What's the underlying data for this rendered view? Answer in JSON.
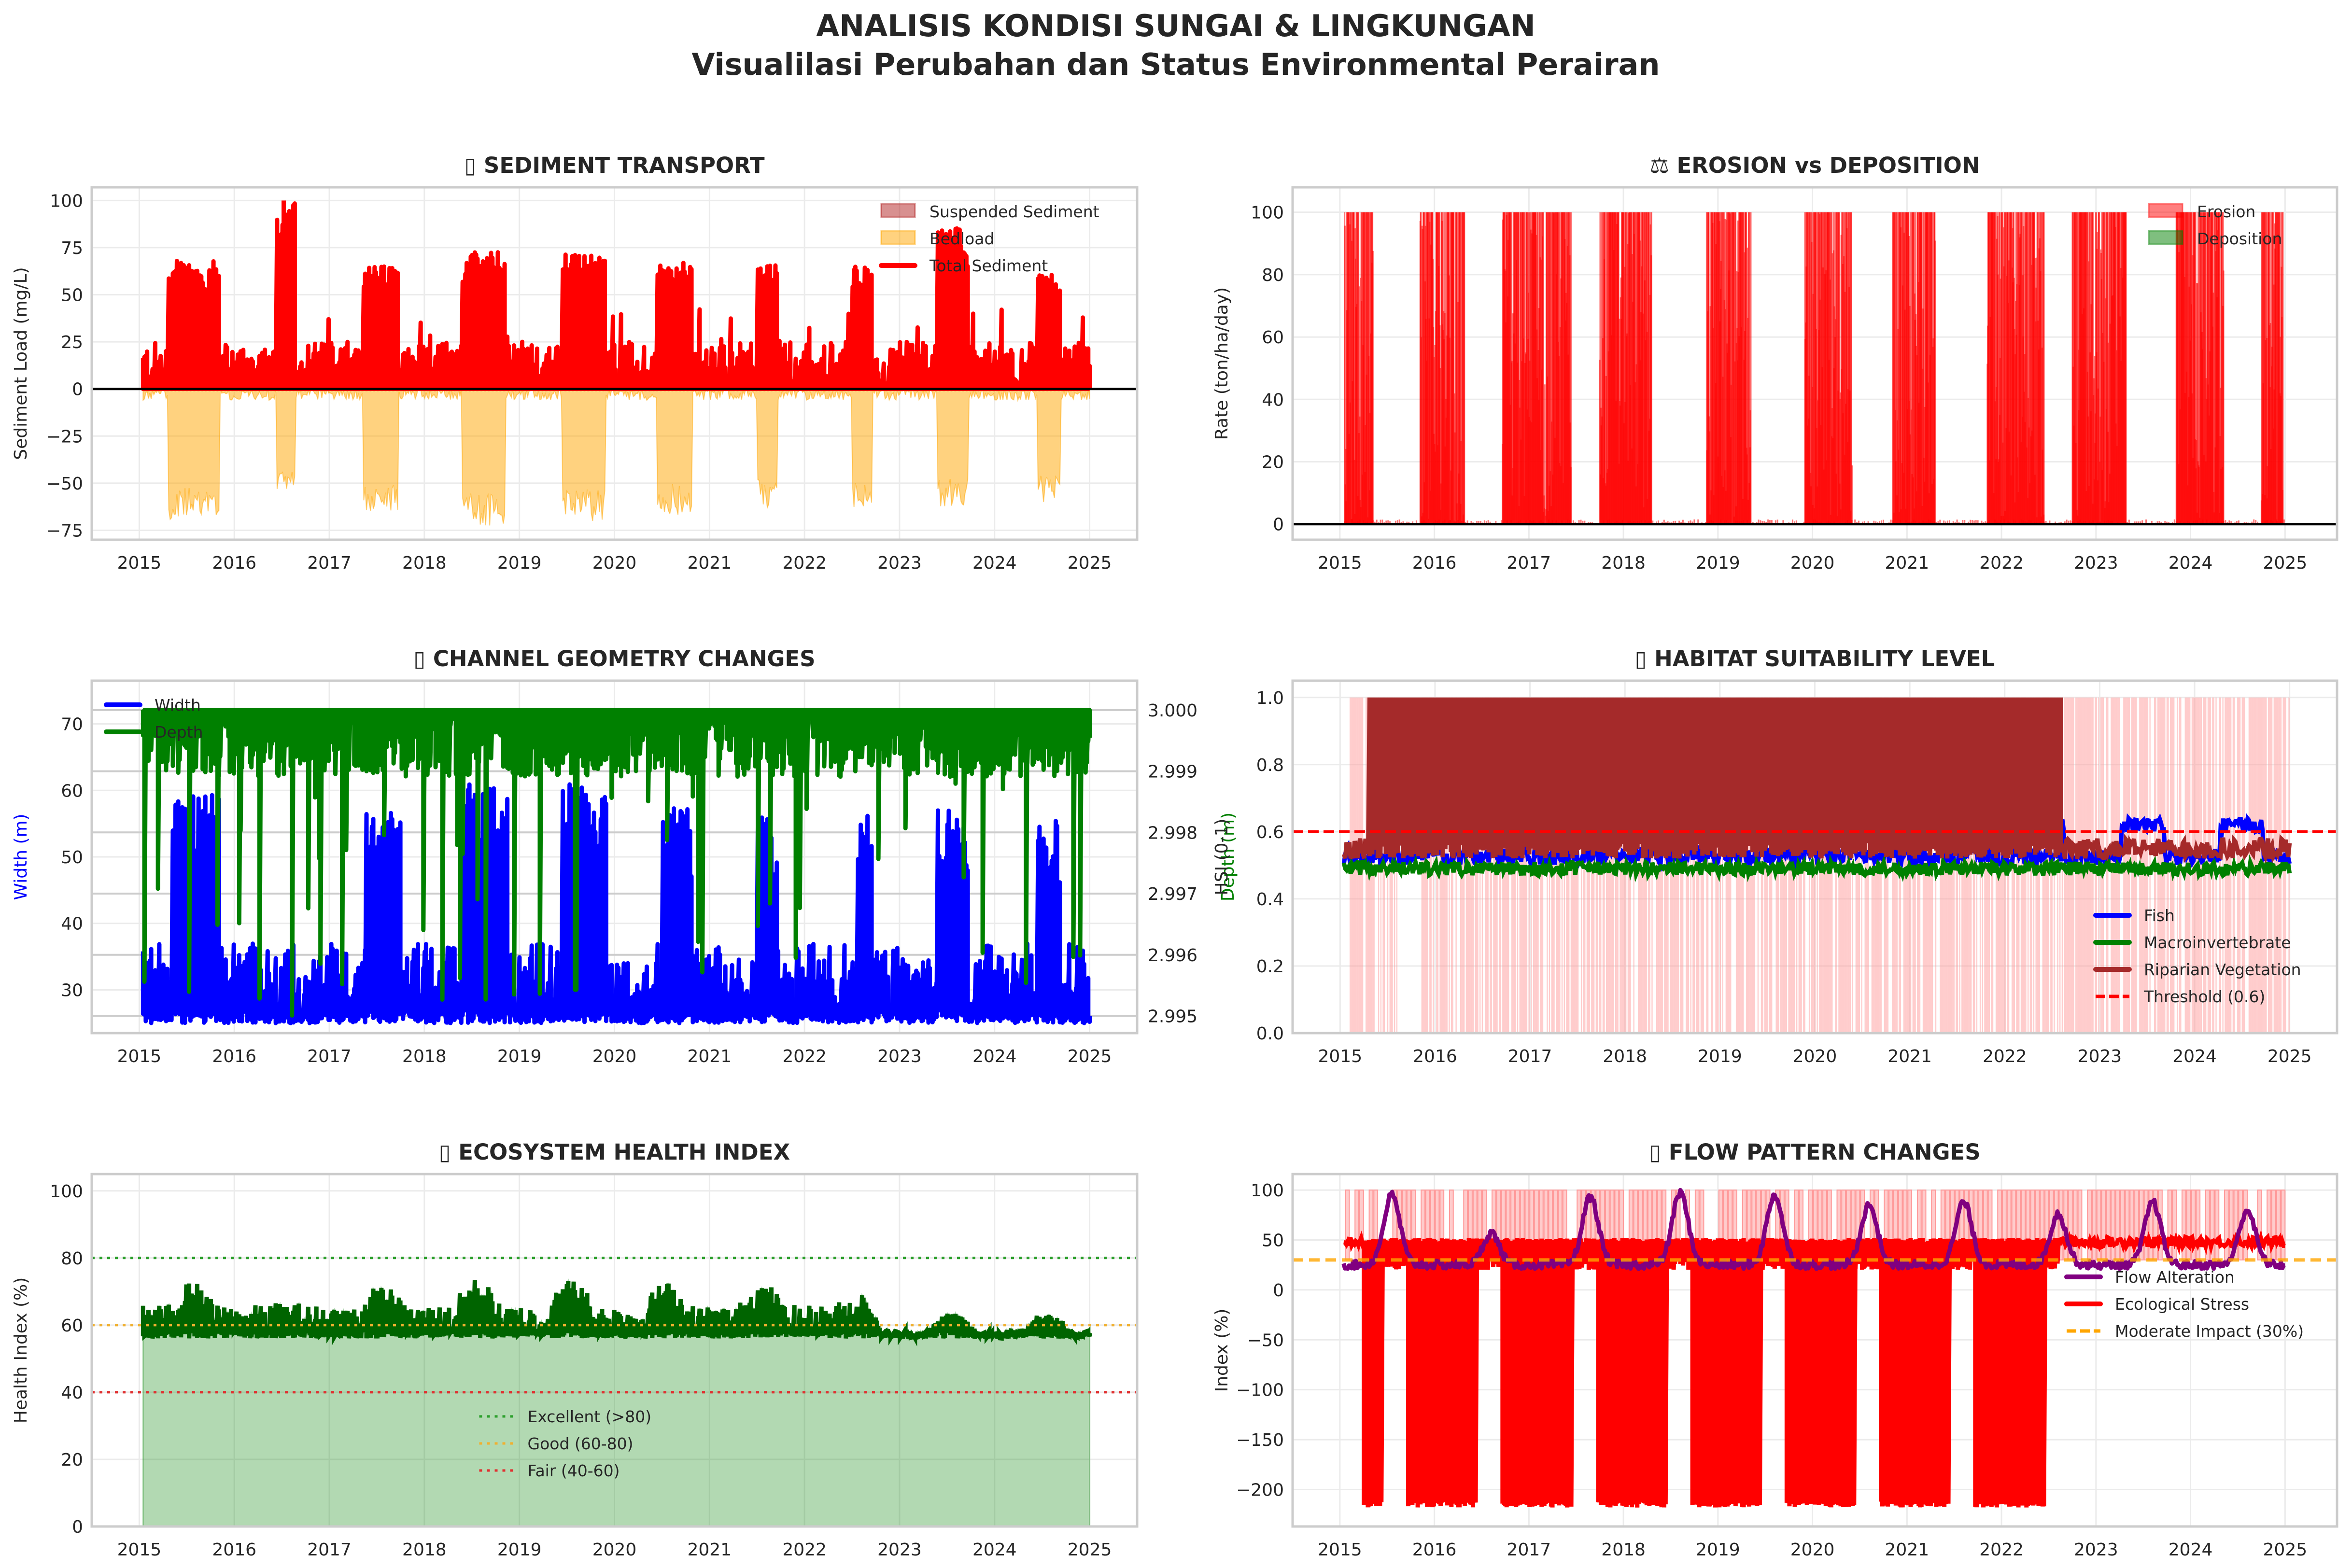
{
  "figure": {
    "title_line1": "ANALISIS KONDISI SUNGAI & LINGKUNGAN",
    "title_line2": "Visualilasi Perubahan dan Status Environmental Perairan"
  },
  "chart_data": [
    {
      "id": "sediment",
      "type": "line",
      "title": "▯ SEDIMENT TRANSPORT",
      "title_icon": "missing-glyph-box",
      "xlabel": "",
      "ylabel": "Sediment Load (mg/L)",
      "xlim": [
        2014.5,
        2025.5
      ],
      "ylim": [
        -80,
        107
      ],
      "xticks": [
        "2015",
        "2016",
        "2017",
        "2018",
        "2019",
        "2020",
        "2021",
        "2022",
        "2023",
        "2024",
        "2025"
      ],
      "yticks": [
        -75,
        -50,
        -25,
        0,
        25,
        50,
        75,
        100
      ],
      "ytick_labels": [
        "−75",
        "−50",
        "−25",
        "0",
        "25",
        "50",
        "75",
        "100"
      ],
      "grid": true,
      "zero_line": true,
      "legend": {
        "position": "top-right",
        "entries": [
          {
            "label": "Suspended Sediment",
            "kind": "patch",
            "color": "#b22222"
          },
          {
            "label": "Bedload",
            "kind": "patch",
            "color": "#ffa500"
          },
          {
            "label": "Total Sediment",
            "kind": "line",
            "color": "#ff0000"
          }
        ]
      },
      "series": [
        {
          "name": "Total Sediment",
          "color": "#ff0000",
          "baseline_range": [
            0,
            25
          ],
          "wet_season_peaks": [
            {
              "start": 2015.3,
              "end": 2015.85,
              "peak": 68
            },
            {
              "start": 2016.45,
              "end": 2016.65,
              "peak": 100
            },
            {
              "start": 2017.35,
              "end": 2017.72,
              "peak": 66
            },
            {
              "start": 2018.4,
              "end": 2018.85,
              "peak": 73
            },
            {
              "start": 2019.45,
              "end": 2019.9,
              "peak": 72
            },
            {
              "start": 2020.45,
              "end": 2020.82,
              "peak": 67
            },
            {
              "start": 2021.5,
              "end": 2021.72,
              "peak": 66
            },
            {
              "start": 2022.5,
              "end": 2022.72,
              "peak": 65
            },
            {
              "start": 2023.4,
              "end": 2023.72,
              "peak": 86
            },
            {
              "start": 2024.45,
              "end": 2024.7,
              "peak": 62
            }
          ]
        },
        {
          "name": "Suspended Sediment",
          "color": "#b22222",
          "range": [
            0,
            19
          ]
        },
        {
          "name": "Bedload",
          "color": "#ffa500",
          "sign": "negative",
          "min": -73,
          "troughs": [
            {
              "start": 2015.3,
              "end": 2015.85,
              "depth": -70
            },
            {
              "start": 2016.45,
              "end": 2016.65,
              "depth": -58
            },
            {
              "start": 2017.35,
              "end": 2017.72,
              "depth": -65
            },
            {
              "start": 2018.4,
              "end": 2018.85,
              "depth": -73
            },
            {
              "start": 2019.45,
              "end": 2019.9,
              "depth": -71
            },
            {
              "start": 2020.45,
              "end": 2020.82,
              "depth": -67
            },
            {
              "start": 2021.5,
              "end": 2021.72,
              "depth": -64
            },
            {
              "start": 2022.5,
              "end": 2022.72,
              "depth": -65
            },
            {
              "start": 2023.4,
              "end": 2023.72,
              "depth": -63
            },
            {
              "start": 2024.45,
              "end": 2024.7,
              "depth": -61
            }
          ]
        }
      ]
    },
    {
      "id": "erosion",
      "type": "bar",
      "title": "⚖ EROSION vs DEPOSITION",
      "title_icon": "balance-scale-icon",
      "xlabel": "",
      "ylabel": "Rate (ton/ha/day)",
      "xlim": [
        2014.5,
        2025.55
      ],
      "ylim": [
        -5,
        108
      ],
      "xticks": [
        "2015",
        "2016",
        "2017",
        "2018",
        "2019",
        "2020",
        "2021",
        "2022",
        "2023",
        "2024",
        "2025"
      ],
      "yticks": [
        0,
        20,
        40,
        60,
        80,
        100
      ],
      "ytick_labels": [
        "0",
        "20",
        "40",
        "60",
        "80",
        "100"
      ],
      "grid": true,
      "zero_line": true,
      "legend": {
        "position": "top-right",
        "entries": [
          {
            "label": "Erosion",
            "kind": "patch",
            "color": "#ff0000"
          },
          {
            "label": "Deposition",
            "kind": "patch",
            "color": "#008000"
          }
        ]
      },
      "series": [
        {
          "name": "Erosion",
          "color": "#ff0000",
          "max": 100,
          "active_periods": [
            [
              2015.05,
              2015.35
            ],
            [
              2015.85,
              2016.32
            ],
            [
              2016.72,
              2017.45
            ],
            [
              2017.75,
              2018.3
            ],
            [
              2018.88,
              2019.35
            ],
            [
              2019.92,
              2020.42
            ],
            [
              2020.85,
              2021.3
            ],
            [
              2021.85,
              2022.45
            ],
            [
              2022.75,
              2023.32
            ],
            [
              2023.85,
              2024.35
            ],
            [
              2024.75,
              2024.98
            ]
          ]
        },
        {
          "name": "Deposition",
          "color": "#008000",
          "max": 0
        }
      ]
    },
    {
      "id": "geometry",
      "type": "line",
      "title": "▯ CHANNEL GEOMETRY CHANGES",
      "title_icon": "missing-glyph-box",
      "xlabel": "",
      "ylabel": "Width (m)",
      "ylabel_color": "#0000ff",
      "ylabel_right": "Depth (m)",
      "ylabel_right_color": "#008000",
      "xlim": [
        2014.5,
        2025.5
      ],
      "ylim": [
        23.5,
        76.5
      ],
      "ylim_right": [
        2.99472,
        3.00048
      ],
      "xticks": [
        "2015",
        "2016",
        "2017",
        "2018",
        "2019",
        "2020",
        "2021",
        "2022",
        "2023",
        "2024",
        "2025"
      ],
      "yticks": [
        30,
        40,
        50,
        60,
        70
      ],
      "ytick_labels": [
        "30",
        "40",
        "50",
        "60",
        "70"
      ],
      "yticks_right": [
        2.995,
        2.996,
        2.997,
        2.998,
        2.999,
        3.0
      ],
      "ytick_labels_right": [
        "2.995",
        "2.996",
        "2.997",
        "2.998",
        "2.999",
        "3.000"
      ],
      "grid": true,
      "legend": {
        "position": "top-left",
        "entries": [
          {
            "label": "Width",
            "kind": "line",
            "color": "#0000ff"
          },
          {
            "label": "Depth",
            "kind": "line",
            "color": "#008000"
          }
        ]
      },
      "series": [
        {
          "name": "Width",
          "color": "#0000ff",
          "baseline_range": [
            25,
            37
          ],
          "wet_season_peaks": [
            {
              "start": 2015.35,
              "end": 2015.85,
              "peak": 60
            },
            {
              "start": 2017.38,
              "end": 2017.75,
              "peak": 58
            },
            {
              "start": 2018.4,
              "end": 2018.88,
              "peak": 61
            },
            {
              "start": 2019.45,
              "end": 2019.92,
              "peak": 61
            },
            {
              "start": 2020.5,
              "end": 2020.82,
              "peak": 58
            },
            {
              "start": 2021.5,
              "end": 2021.72,
              "peak": 57
            },
            {
              "start": 2022.55,
              "end": 2022.72,
              "peak": 57
            },
            {
              "start": 2023.4,
              "end": 2023.72,
              "peak": 57
            },
            {
              "start": 2024.45,
              "end": 2024.7,
              "peak": 56
            }
          ]
        },
        {
          "name": "Depth",
          "color": "#008000",
          "typical_range": [
            2.9988,
            3.0
          ],
          "min": 2.99495
        }
      ]
    },
    {
      "id": "habitat",
      "type": "line",
      "title": "▯ HABITAT SUITABILITY LEVEL",
      "title_icon": "missing-glyph-box",
      "xlabel": "",
      "ylabel": "HSI (0-1)",
      "xlim": [
        2014.5,
        2025.5
      ],
      "ylim": [
        0,
        1.05
      ],
      "xticks": [
        "2015",
        "2016",
        "2017",
        "2018",
        "2019",
        "2020",
        "2021",
        "2022",
        "2023",
        "2024",
        "2025"
      ],
      "yticks": [
        0.0,
        0.2,
        0.4,
        0.6,
        0.8,
        1.0
      ],
      "ytick_labels": [
        "0.0",
        "0.2",
        "0.4",
        "0.6",
        "0.8",
        "1.0"
      ],
      "grid": true,
      "threshold": {
        "value": 0.6,
        "color": "#ff0000",
        "label": "Threshold (0.6)"
      },
      "legend": {
        "position": "lower-right",
        "entries": [
          {
            "label": "Fish",
            "kind": "line",
            "color": "#0000ff"
          },
          {
            "label": "Macroinvertebrate",
            "kind": "line",
            "color": "#008000"
          },
          {
            "label": "Riparian Vegetation",
            "kind": "line",
            "color": "#a52a2a"
          },
          {
            "label": "Threshold (0.6)",
            "kind": "dashed",
            "color": "#ff0000"
          }
        ]
      },
      "series": [
        {
          "name": "Fish",
          "color": "#0000ff",
          "range": [
            0.5,
            0.64
          ]
        },
        {
          "name": "Macroinvertebrate",
          "color": "#008000",
          "range": [
            0.46,
            0.52
          ]
        },
        {
          "name": "Riparian Vegetation",
          "color": "#a52a2a",
          "oscillating_until": 2022.6,
          "range": [
            0.52,
            1.0
          ],
          "after_range": [
            0.52,
            0.58
          ]
        }
      ],
      "shaded_below_threshold": {
        "color": "#ff9999",
        "range": [
          0,
          1
        ]
      }
    },
    {
      "id": "health",
      "type": "area",
      "title": "▯ ECOSYSTEM HEALTH INDEX",
      "title_icon": "missing-glyph-box",
      "xlabel": "",
      "ylabel": "Health Index (%)",
      "xlim": [
        2014.5,
        2025.5
      ],
      "ylim": [
        0,
        105
      ],
      "xticks": [
        "2015",
        "2016",
        "2017",
        "2018",
        "2019",
        "2020",
        "2021",
        "2022",
        "2023",
        "2024",
        "2025"
      ],
      "yticks": [
        0,
        20,
        40,
        60,
        80,
        100
      ],
      "ytick_labels": [
        "0",
        "20",
        "40",
        "60",
        "80",
        "100"
      ],
      "grid": true,
      "reference_lines": [
        {
          "value": 80,
          "color": "#2ca02c",
          "label": "Excellent (>80)"
        },
        {
          "value": 60,
          "color": "#f0b030",
          "label": "Good (60-80)"
        },
        {
          "value": 40,
          "color": "#e03030",
          "label": "Fair (40-60)"
        }
      ],
      "legend": {
        "position": "lower-center",
        "entries": [
          {
            "label": "Excellent (>80)",
            "kind": "dotted",
            "color": "#2ca02c"
          },
          {
            "label": "Good (60-80)",
            "kind": "dotted",
            "color": "#f0b030"
          },
          {
            "label": "Fair (40-60)",
            "kind": "dotted",
            "color": "#e03030"
          }
        ]
      },
      "series": [
        {
          "name": "Health Index",
          "color": "#006400",
          "fill": "#b2d8b2",
          "baseline_range": [
            56,
            66
          ],
          "until": 2022.6,
          "after_range": [
            56,
            63
          ],
          "annual_peaks": [
            73,
            67,
            72,
            74,
            74,
            73,
            73,
            69,
            63,
            63
          ]
        }
      ]
    },
    {
      "id": "flow",
      "type": "line",
      "title": "▯ FLOW PATTERN CHANGES",
      "title_icon": "missing-glyph-box",
      "xlabel": "",
      "ylabel": "Index (%)",
      "xlim": [
        2014.5,
        2025.55
      ],
      "ylim": [
        -237,
        116
      ],
      "xticks": [
        "2015",
        "2016",
        "2017",
        "2018",
        "2019",
        "2020",
        "2021",
        "2022",
        "2023",
        "2024",
        "2025"
      ],
      "yticks": [
        -200,
        -150,
        -100,
        -50,
        0,
        50,
        100
      ],
      "ytick_labels": [
        "−200",
        "−150",
        "−100",
        "−50",
        "0",
        "50",
        "100"
      ],
      "grid": true,
      "threshold": {
        "value": 30,
        "color": "#ffa500",
        "label": "Moderate Impact (30%)"
      },
      "legend": {
        "position": "center-right",
        "entries": [
          {
            "label": "Flow Alteration",
            "kind": "line",
            "color": "#800080"
          },
          {
            "label": "Ecological Stress",
            "kind": "line",
            "color": "#ff0000"
          },
          {
            "label": "Moderate Impact (30%)",
            "kind": "dashed",
            "color": "#ffa500"
          }
        ]
      },
      "series": [
        {
          "name": "Flow Alteration",
          "color": "#800080",
          "annual_peaks": [
            {
              "x": 2015.55,
              "y": 95
            },
            {
              "x": 2016.6,
              "y": 57
            },
            {
              "x": 2017.65,
              "y": 93
            },
            {
              "x": 2018.6,
              "y": 97
            },
            {
              "x": 2019.6,
              "y": 95
            },
            {
              "x": 2020.6,
              "y": 85
            },
            {
              "x": 2021.6,
              "y": 88
            },
            {
              "x": 2022.6,
              "y": 76
            },
            {
              "x": 2023.6,
              "y": 88
            },
            {
              "x": 2024.6,
              "y": 80
            }
          ],
          "min": 10
        },
        {
          "name": "Ecological Stress",
          "color": "#ff0000",
          "upper": 52,
          "lower_until_2022_6": -220,
          "after_range": [
            40,
            53
          ]
        }
      ],
      "shaded_above_threshold": {
        "color": "#ff9999",
        "range": [
          30,
          100
        ]
      }
    }
  ]
}
